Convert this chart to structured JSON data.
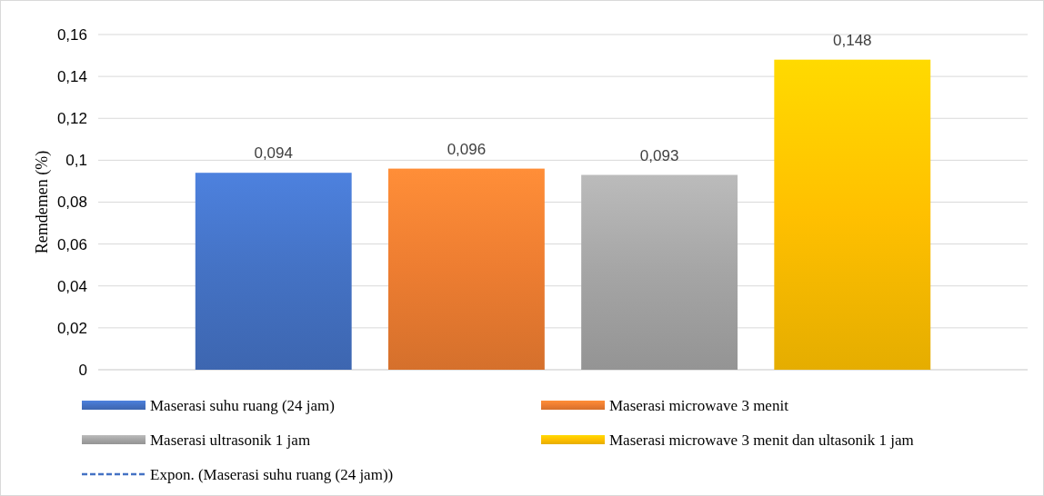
{
  "chart_data": {
    "type": "bar",
    "ylabel": "Remdemen (%)",
    "categories": [
      null
    ],
    "ylim": [
      0,
      0.16
    ],
    "yticks": [
      {
        "value": 0,
        "label": "0"
      },
      {
        "value": 0.02,
        "label": "0,02"
      },
      {
        "value": 0.04,
        "label": "0,04"
      },
      {
        "value": 0.06,
        "label": "0,06"
      },
      {
        "value": 0.08,
        "label": "0,08"
      },
      {
        "value": 0.1,
        "label": "0,1"
      },
      {
        "value": 0.12,
        "label": "0,12"
      },
      {
        "value": 0.14,
        "label": "0,14"
      },
      {
        "value": 0.16,
        "label": "0,16"
      }
    ],
    "grid": "y",
    "legend": "bottom",
    "data_labels": true,
    "series": [
      {
        "name": "Maserasi suhu ruang (24 jam)",
        "color": "#4472c4",
        "values": [
          0.094
        ],
        "value_labels": [
          "0,094"
        ]
      },
      {
        "name": "Maserasi microwave 3 menit",
        "color": "#ed7d31",
        "values": [
          0.096
        ],
        "value_labels": [
          "0,096"
        ]
      },
      {
        "name": "Maserasi ultrasonik 1 jam",
        "color": "#a5a5a5",
        "values": [
          0.093
        ],
        "value_labels": [
          "0,093"
        ]
      },
      {
        "name": "Maserasi microwave 3 menit dan ultasonik 1 jam",
        "color": "#ffc000",
        "values": [
          0.148
        ],
        "value_labels": [
          "0,148"
        ]
      },
      {
        "name": "Expon. (Maserasi suhu ruang (24 jam))",
        "type": "line",
        "color": "#4472c4",
        "line_style": "dashed",
        "values": [
          null
        ]
      }
    ]
  }
}
